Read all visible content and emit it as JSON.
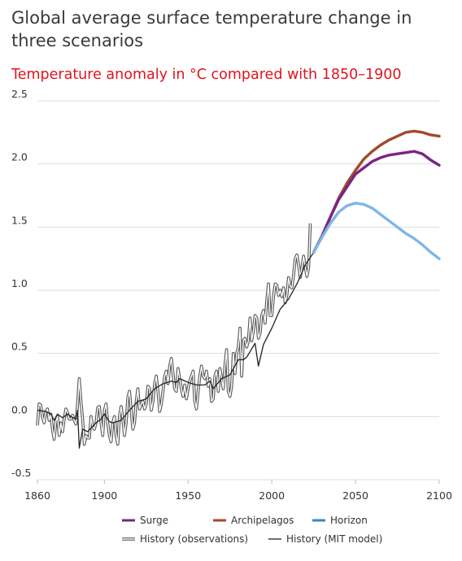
{
  "title": "Global average surface temperature change in three scenarios",
  "subtitle": "Temperature anomaly in °C compared with 1850–1900",
  "colors": {
    "surge": "#7b2583",
    "archipelagos": "#a04a2a",
    "horizon": "#7db6e8",
    "history_observations": "#555555",
    "history_model": "#222222",
    "grid": "#dddddd"
  },
  "chart_data": {
    "type": "line",
    "xlim": [
      1860,
      2100
    ],
    "ylim": [
      -0.5,
      2.5
    ],
    "x_ticks": [
      "1860",
      "1900",
      "1950",
      "2000",
      "2050",
      "2100"
    ],
    "y_ticks": [
      "2.5",
      "2.0",
      "1.5",
      "1.0",
      "0.5",
      "0.0",
      "-0.5"
    ],
    "grid": "horizontal",
    "legend": [
      {
        "label": "Surge",
        "color": "#7b2583",
        "style": "line"
      },
      {
        "label": "Archipelagos",
        "color": "#a04a2a",
        "style": "line"
      },
      {
        "label": "Horizon",
        "color": "#3a86c4",
        "style": "line"
      },
      {
        "label": "History (observations)",
        "color": "#555555",
        "style": "double"
      },
      {
        "label": "History (MIT model)",
        "color": "#222222",
        "style": "line"
      }
    ],
    "series": [
      {
        "name": "History (observations)",
        "style": "double",
        "x": [
          1860,
          1861,
          1862,
          1863,
          1864,
          1865,
          1866,
          1867,
          1868,
          1869,
          1870,
          1871,
          1872,
          1873,
          1874,
          1875,
          1876,
          1877,
          1878,
          1879,
          1880,
          1881,
          1882,
          1883,
          1884,
          1885,
          1886,
          1887,
          1888,
          1889,
          1890,
          1891,
          1892,
          1893,
          1894,
          1895,
          1896,
          1897,
          1898,
          1899,
          1900,
          1901,
          1902,
          1903,
          1904,
          1905,
          1906,
          1907,
          1908,
          1909,
          1910,
          1911,
          1912,
          1913,
          1914,
          1915,
          1916,
          1917,
          1918,
          1919,
          1920,
          1921,
          1922,
          1923,
          1924,
          1925,
          1926,
          1927,
          1928,
          1929,
          1930,
          1931,
          1932,
          1933,
          1934,
          1935,
          1936,
          1937,
          1938,
          1939,
          1940,
          1941,
          1942,
          1943,
          1944,
          1945,
          1946,
          1947,
          1948,
          1949,
          1950,
          1951,
          1952,
          1953,
          1954,
          1955,
          1956,
          1957,
          1958,
          1959,
          1960,
          1961,
          1962,
          1963,
          1964,
          1965,
          1966,
          1967,
          1968,
          1969,
          1970,
          1971,
          1972,
          1973,
          1974,
          1975,
          1976,
          1977,
          1978,
          1979,
          1980,
          1981,
          1982,
          1983,
          1984,
          1985,
          1986,
          1987,
          1988,
          1989,
          1990,
          1991,
          1992,
          1993,
          1994,
          1995,
          1996,
          1997,
          1998,
          1999,
          2000,
          2001,
          2002,
          2003,
          2004,
          2005,
          2006,
          2007,
          2008,
          2009,
          2010,
          2011,
          2012,
          2013,
          2014,
          2015,
          2016,
          2017,
          2018,
          2019,
          2020,
          2021,
          2022,
          2023
        ],
        "values": [
          -0.07,
          0.1,
          0.09,
          0.0,
          -0.05,
          0.04,
          0.06,
          -0.03,
          0.02,
          -0.1,
          -0.18,
          -0.04,
          0.0,
          -0.15,
          -0.05,
          -0.12,
          -0.02,
          0.06,
          0.03,
          -0.02,
          -0.02,
          0.01,
          -0.03,
          -0.06,
          0.1,
          0.3,
          0.12,
          -0.02,
          -0.22,
          -0.15,
          -0.17,
          -0.17,
          0.0,
          -0.08,
          -0.1,
          -0.05,
          0.07,
          0.08,
          -0.05,
          -0.15,
          0.05,
          0.1,
          -0.05,
          -0.15,
          -0.2,
          -0.05,
          0.0,
          -0.15,
          -0.22,
          0.0,
          0.08,
          -0.02,
          -0.15,
          -0.05,
          0.15,
          0.2,
          0.05,
          -0.1,
          -0.05,
          0.12,
          0.22,
          0.06,
          0.1,
          0.12,
          0.06,
          0.1,
          0.24,
          0.22,
          0.05,
          0.12,
          0.26,
          0.32,
          0.2,
          0.04,
          0.1,
          0.2,
          0.32,
          0.36,
          0.26,
          0.4,
          0.46,
          0.34,
          0.22,
          0.2,
          0.38,
          0.3,
          0.22,
          0.16,
          0.25,
          0.14,
          0.22,
          0.28,
          0.32,
          0.36,
          0.12,
          0.06,
          0.2,
          0.32,
          0.4,
          0.32,
          0.3,
          0.36,
          0.24,
          0.3,
          0.12,
          0.14,
          0.32,
          0.36,
          0.2,
          0.38,
          0.3,
          0.22,
          0.4,
          0.53,
          0.2,
          0.16,
          0.24,
          0.5,
          0.34,
          0.5,
          0.55,
          0.7,
          0.32,
          0.6,
          0.62,
          0.55,
          0.6,
          0.78,
          0.6,
          0.68,
          0.8,
          0.78,
          0.62,
          0.66,
          0.8,
          0.84,
          0.74,
          0.92,
          1.05,
          0.8,
          0.8,
          0.95,
          1.05,
          1.04,
          0.96,
          1.0,
          0.95,
          1.02,
          0.9,
          0.96,
          1.1,
          1.03,
          1.02,
          1.12,
          1.25,
          1.28,
          1.2,
          1.1,
          1.18,
          1.27,
          1.18,
          1.11,
          1.18,
          1.53
        ]
      },
      {
        "name": "History (MIT model)",
        "style": "line",
        "x": [
          1860,
          1865,
          1868,
          1870,
          1872,
          1875,
          1878,
          1880,
          1883,
          1884,
          1885,
          1887,
          1890,
          1895,
          1898,
          1900,
          1903,
          1905,
          1910,
          1915,
          1920,
          1925,
          1930,
          1935,
          1940,
          1943,
          1945,
          1950,
          1955,
          1960,
          1963,
          1965,
          1970,
          1975,
          1980,
          1983,
          1985,
          1990,
          1992,
          1995,
          2000,
          2005,
          2010,
          2015,
          2020,
          2025
        ],
        "values": [
          0.05,
          0.04,
          0.02,
          -0.03,
          0.02,
          -0.01,
          0.02,
          0.0,
          -0.02,
          0.05,
          -0.25,
          -0.1,
          -0.12,
          -0.05,
          -0.02,
          0.02,
          -0.04,
          -0.05,
          -0.03,
          0.05,
          0.12,
          0.14,
          0.22,
          0.26,
          0.28,
          0.27,
          0.3,
          0.27,
          0.25,
          0.25,
          0.28,
          0.22,
          0.3,
          0.33,
          0.45,
          0.45,
          0.47,
          0.58,
          0.4,
          0.57,
          0.7,
          0.85,
          0.93,
          1.05,
          1.2,
          1.3
        ]
      },
      {
        "name": "Archipelagos",
        "style": "line",
        "x": [
          2025,
          2030,
          2035,
          2040,
          2045,
          2050,
          2055,
          2060,
          2065,
          2070,
          2075,
          2080,
          2085,
          2090,
          2095,
          2100
        ],
        "values": [
          1.3,
          1.43,
          1.58,
          1.73,
          1.85,
          1.95,
          2.04,
          2.1,
          2.15,
          2.19,
          2.22,
          2.25,
          2.26,
          2.25,
          2.23,
          2.22
        ]
      },
      {
        "name": "Surge",
        "style": "line",
        "x": [
          2025,
          2030,
          2035,
          2040,
          2045,
          2050,
          2055,
          2060,
          2065,
          2070,
          2075,
          2080,
          2085,
          2090,
          2095,
          2100
        ],
        "values": [
          1.3,
          1.43,
          1.58,
          1.72,
          1.82,
          1.92,
          1.97,
          2.02,
          2.05,
          2.07,
          2.08,
          2.09,
          2.1,
          2.08,
          2.03,
          1.99
        ]
      },
      {
        "name": "Horizon",
        "style": "line",
        "x": [
          2025,
          2030,
          2035,
          2040,
          2045,
          2050,
          2055,
          2060,
          2065,
          2070,
          2075,
          2080,
          2085,
          2090,
          2095,
          2100
        ],
        "values": [
          1.3,
          1.42,
          1.53,
          1.62,
          1.67,
          1.69,
          1.68,
          1.65,
          1.6,
          1.55,
          1.5,
          1.45,
          1.41,
          1.36,
          1.3,
          1.25
        ]
      }
    ]
  }
}
